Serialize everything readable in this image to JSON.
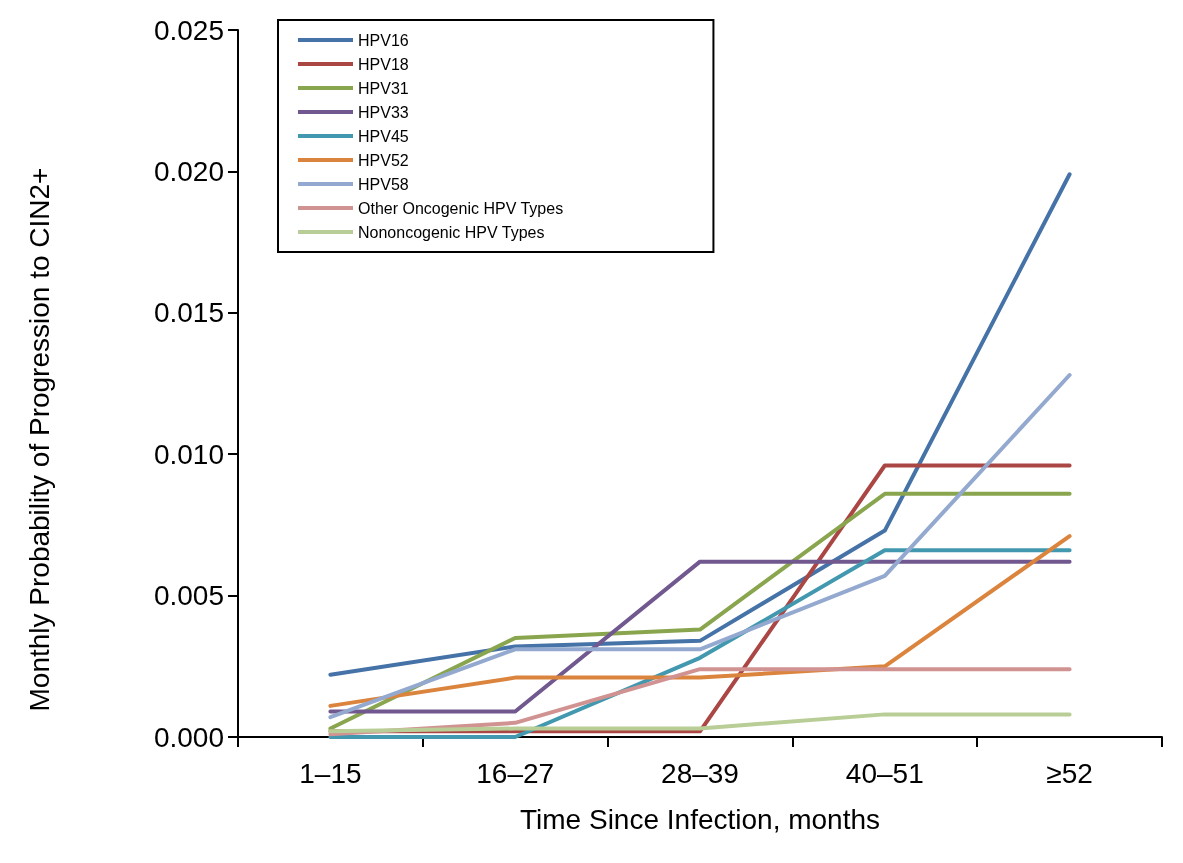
{
  "chart_data": {
    "type": "line",
    "xlabel": "Time Since Infection, months",
    "ylabel": "Monthly Probability of Progression to CIN2+",
    "categories": [
      "1–15",
      "16–27",
      "28–39",
      "40–51",
      "≥52"
    ],
    "ylim": [
      0,
      0.025
    ],
    "yticks": [
      {
        "value": 0,
        "label": "0.000"
      },
      {
        "value": 0.005,
        "label": "0.005"
      },
      {
        "value": 0.01,
        "label": "0.010"
      },
      {
        "value": 0.015,
        "label": "0.015"
      },
      {
        "value": 0.02,
        "label": "0.020"
      },
      {
        "value": 0.025,
        "label": "0.025"
      }
    ],
    "grid": false,
    "legend": "top left",
    "marker": "none",
    "line_style": "solid",
    "series": [
      {
        "name": "HPV16",
        "color": "#4572a7",
        "values": [
          0.0022,
          0.0032,
          0.0034,
          0.0073,
          0.0199
        ]
      },
      {
        "name": "HPV18",
        "color": "#aa4643",
        "values": [
          0.0002,
          0.0002,
          0.0002,
          0.0096,
          0.0096
        ]
      },
      {
        "name": "HPV31",
        "color": "#89a54e",
        "values": [
          0.0003,
          0.0035,
          0.0038,
          0.0086,
          0.0086
        ]
      },
      {
        "name": "HPV33",
        "color": "#71588f",
        "values": [
          0.0009,
          0.0009,
          0.0062,
          0.0062,
          0.0062
        ]
      },
      {
        "name": "HPV45",
        "color": "#4198af",
        "values": [
          0.0,
          0.0,
          0.0028,
          0.0066,
          0.0066
        ]
      },
      {
        "name": "HPV52",
        "color": "#db843d",
        "values": [
          0.0011,
          0.0021,
          0.0021,
          0.0025,
          0.0071
        ]
      },
      {
        "name": "HPV58",
        "color": "#93a9cf",
        "values": [
          0.0007,
          0.0031,
          0.0031,
          0.0057,
          0.0128
        ]
      },
      {
        "name": "Other Oncogenic HPV Types",
        "color": "#d19392",
        "values": [
          0.0001,
          0.0005,
          0.0024,
          0.0024,
          0.0024
        ]
      },
      {
        "name": "Nononcogenic HPV Types",
        "color": "#b9cd96",
        "values": [
          0.0002,
          0.0003,
          0.0003,
          0.0008,
          0.0008
        ]
      }
    ]
  }
}
